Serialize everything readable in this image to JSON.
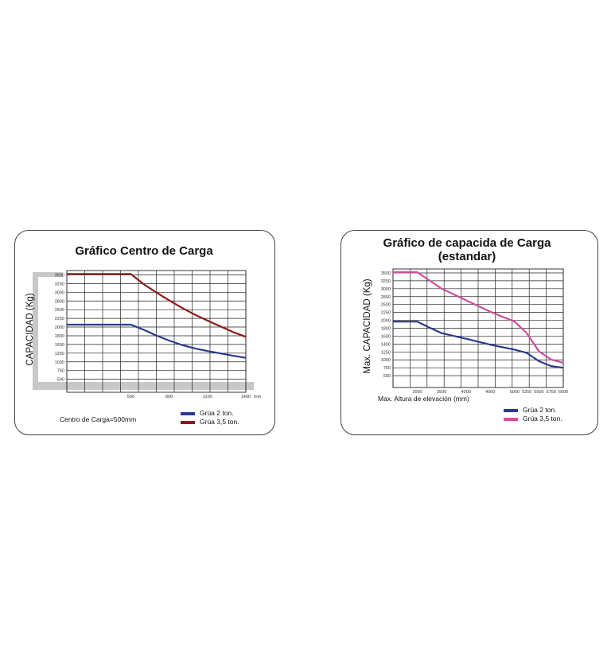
{
  "chart_data": [
    {
      "type": "line",
      "title": "Gráfico Centro de Carga",
      "ylabel": "CAPACIDAD (Kg)",
      "xlabel": "Centro de Carga=500mm",
      "x_unit": "mm",
      "xlim": [
        0,
        1400
      ],
      "ylim": [
        0,
        3600
      ],
      "x_ticks": [
        "500",
        "800",
        "1100",
        "1400"
      ],
      "y_ticks": [
        "3500",
        "3250",
        "3000",
        "2800",
        "2500",
        "2250",
        "2000",
        "1800",
        "1600",
        "1250",
        "1000",
        "750",
        "500"
      ],
      "grid": true,
      "legend_position": "bottom-right",
      "series": [
        {
          "name": "Grúa 2 ton.",
          "color": "#2b3a8c",
          "x": [
            0,
            400,
            500,
            600,
            700,
            800,
            900,
            1000,
            1100,
            1200,
            1300,
            1400
          ],
          "y": [
            2000,
            2000,
            2000,
            1850,
            1680,
            1530,
            1400,
            1300,
            1220,
            1150,
            1080,
            1020
          ]
        },
        {
          "name": "Grúa 3,5 ton.",
          "color": "#8b1a1a",
          "x": [
            0,
            400,
            500,
            600,
            700,
            800,
            900,
            1000,
            1100,
            1200,
            1300,
            1400
          ],
          "y": [
            3500,
            3500,
            3500,
            3200,
            2950,
            2720,
            2500,
            2300,
            2120,
            1950,
            1780,
            1640
          ]
        }
      ]
    },
    {
      "type": "line",
      "title": "Gráfico de capacida de Carga",
      "subtitle": "(estandar)",
      "ylabel": "Max. CAPACIDAD (Kg)",
      "xlabel": "Max. Altura de elevación (mm)",
      "x_unit": "mm",
      "xlim": [
        2500,
        6000
      ],
      "ylim": [
        0,
        3600
      ],
      "x_ticks": [
        "3000",
        "3500",
        "4000",
        "4500",
        "5000",
        "5250",
        "5500",
        "5750",
        "6000"
      ],
      "y_ticks": [
        "3500",
        "3250",
        "3000",
        "2800",
        "2500",
        "2250",
        "2000",
        "1800",
        "1600",
        "1400",
        "1250",
        "1000",
        "750",
        "500"
      ],
      "grid": true,
      "legend_position": "bottom-right",
      "series": [
        {
          "name": "Grúa 2 ton.",
          "color": "#2b3a8c",
          "x": [
            2500,
            2900,
            3000,
            3250,
            3500,
            4000,
            4500,
            5000,
            5250,
            5500,
            5750,
            6000
          ],
          "y": [
            2000,
            2000,
            2000,
            1820,
            1650,
            1480,
            1300,
            1150,
            1050,
            800,
            650,
            600
          ]
        },
        {
          "name": "Grúa 3,5 ton.",
          "color": "#cc4f9a",
          "x": [
            2500,
            2900,
            3000,
            3250,
            3500,
            4000,
            4500,
            5000,
            5250,
            5500,
            5750,
            6000
          ],
          "y": [
            3500,
            3500,
            3500,
            3250,
            3000,
            2650,
            2300,
            2000,
            1650,
            1100,
            850,
            750
          ]
        }
      ]
    }
  ]
}
